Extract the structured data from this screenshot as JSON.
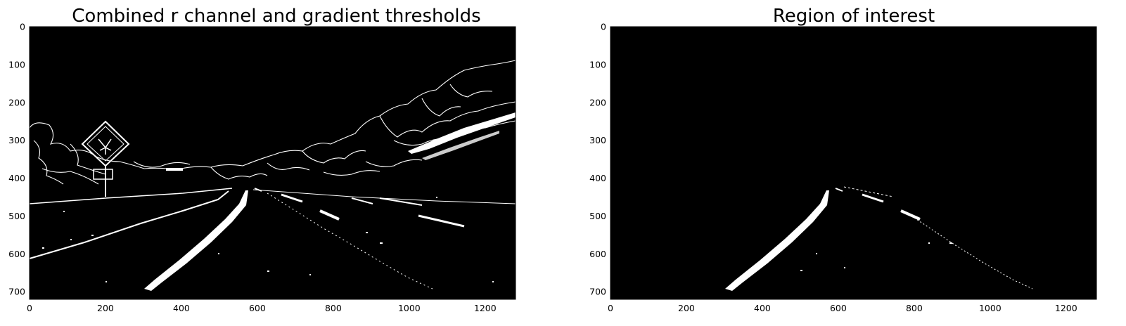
{
  "figure": {
    "panels": [
      {
        "title": "Combined r channel and gradient thresholds",
        "xticks": [
          0,
          200,
          400,
          600,
          800,
          1000,
          1200
        ],
        "yticks": [
          0,
          100,
          200,
          300,
          400,
          500,
          600,
          700
        ],
        "xlim": [
          0,
          1280
        ],
        "ylim": [
          720,
          0
        ],
        "image": "binary-threshold-road-image"
      },
      {
        "title": "Region of interest",
        "xticks": [
          0,
          200,
          400,
          600,
          800,
          1000,
          1200
        ],
        "yticks": [
          0,
          100,
          200,
          300,
          400,
          500,
          600,
          700
        ],
        "xlim": [
          0,
          1280
        ],
        "ylim": [
          720,
          0
        ],
        "image": "masked-lane-region-image"
      }
    ]
  },
  "colors": {
    "background": "#000000",
    "foreground": "#ffffff"
  }
}
